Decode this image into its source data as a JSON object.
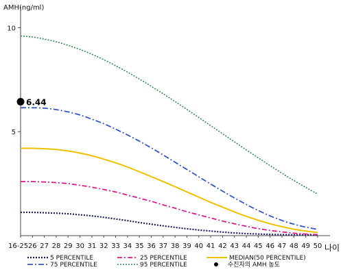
{
  "chart_data": {
    "type": "line",
    "ylabel": "AMH(ng/ml)",
    "xunit": "나이",
    "ylim": [
      0,
      11
    ],
    "yticks": [
      10,
      5
    ],
    "x": [
      "16-25",
      "26",
      "27",
      "28",
      "29",
      "30",
      "31",
      "32",
      "33",
      "34",
      "35",
      "36",
      "37",
      "38",
      "39",
      "40",
      "41",
      "42",
      "43",
      "44",
      "45",
      "46",
      "47",
      "48",
      "49",
      "50"
    ],
    "grid": false,
    "legend_position": "bottom",
    "series": [
      {
        "name": "5 PERCENTILE",
        "color": "#1a1a66",
        "dash": "2,2",
        "width": 2.2,
        "values": [
          1.12,
          1.12,
          1.1,
          1.08,
          1.05,
          1.0,
          0.95,
          0.88,
          0.8,
          0.72,
          0.63,
          0.55,
          0.47,
          0.4,
          0.33,
          0.27,
          0.22,
          0.17,
          0.13,
          0.1,
          0.08,
          0.06,
          0.05,
          0.04,
          0.04,
          0.03
        ]
      },
      {
        "name": "25 PERCENTILE",
        "color": "#e0188a",
        "dash": "7,3,2,3",
        "width": 1.8,
        "values": [
          2.6,
          2.6,
          2.58,
          2.55,
          2.5,
          2.42,
          2.33,
          2.22,
          2.1,
          1.95,
          1.8,
          1.65,
          1.48,
          1.32,
          1.15,
          1.0,
          0.85,
          0.7,
          0.57,
          0.45,
          0.34,
          0.25,
          0.18,
          0.12,
          0.08,
          0.05
        ]
      },
      {
        "name": "MEDIAN(50 PERCENTILE)",
        "color": "#f0c000",
        "dash": "",
        "width": 2,
        "values": [
          4.2,
          4.2,
          4.18,
          4.14,
          4.07,
          3.97,
          3.84,
          3.68,
          3.5,
          3.3,
          3.07,
          2.84,
          2.6,
          2.35,
          2.1,
          1.85,
          1.6,
          1.37,
          1.14,
          0.93,
          0.74,
          0.57,
          0.43,
          0.31,
          0.22,
          0.15
        ]
      },
      {
        "name": "75 PERCENTILE",
        "color": "#3355cc",
        "dash": "8,3,2,3",
        "width": 1.8,
        "values": [
          6.15,
          6.15,
          6.13,
          6.06,
          5.95,
          5.8,
          5.6,
          5.38,
          5.12,
          4.84,
          4.54,
          4.22,
          3.88,
          3.53,
          3.18,
          2.83,
          2.48,
          2.14,
          1.81,
          1.5,
          1.21,
          0.95,
          0.73,
          0.55,
          0.41,
          0.3
        ]
      },
      {
        "name": "95 PERCENTILE",
        "color": "#2e8b57",
        "dash": "2,2",
        "width": 1.6,
        "values": [
          9.6,
          9.55,
          9.45,
          9.32,
          9.15,
          8.95,
          8.72,
          8.46,
          8.17,
          7.86,
          7.53,
          7.18,
          6.82,
          6.45,
          6.07,
          5.68,
          5.29,
          4.9,
          4.51,
          4.12,
          3.74,
          3.37,
          3.0,
          2.65,
          2.32,
          2.0
        ]
      }
    ],
    "marker": {
      "name": "수진자의 AMH 농도",
      "x": "16-25",
      "y": 6.44,
      "label": "6.44",
      "color": "#000000"
    }
  }
}
